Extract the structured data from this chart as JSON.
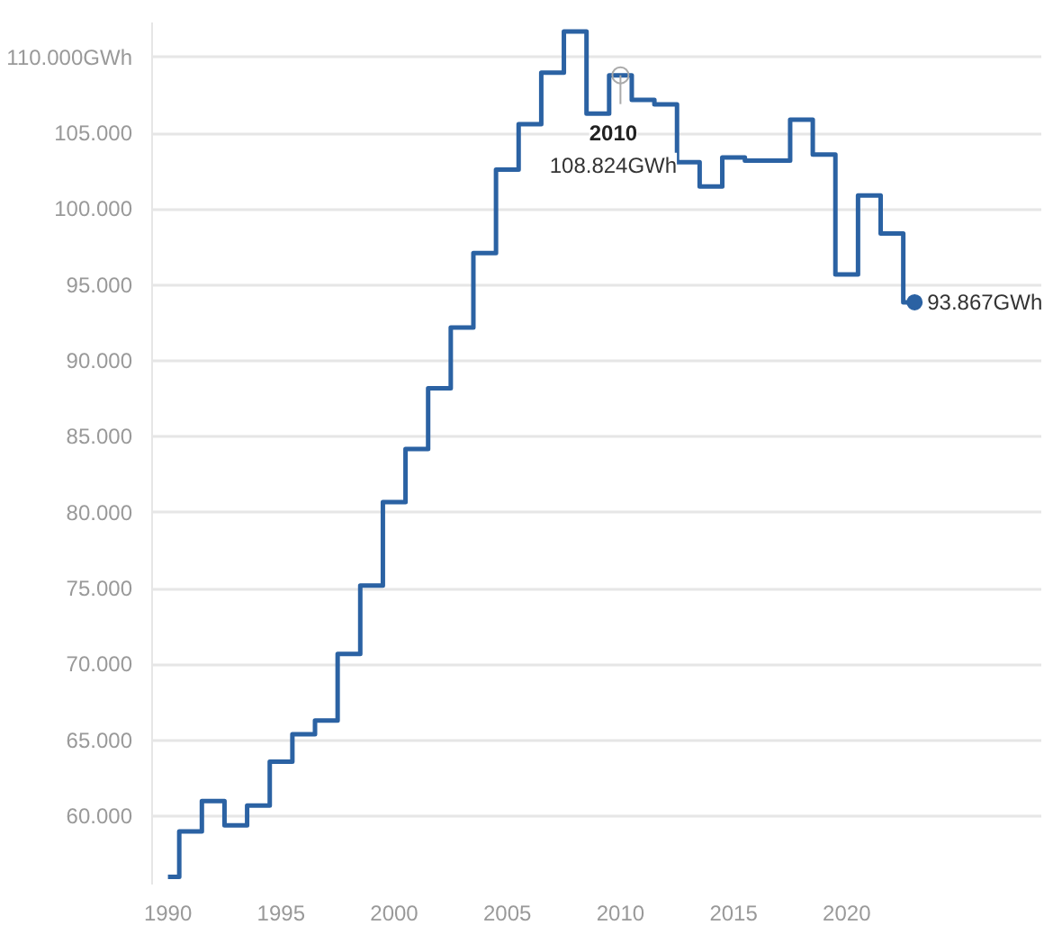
{
  "chart_data": {
    "type": "step",
    "x": [
      1990,
      1991,
      1992,
      1993,
      1994,
      1995,
      1996,
      1997,
      1998,
      1999,
      2000,
      2001,
      2002,
      2003,
      2004,
      2005,
      2006,
      2007,
      2008,
      2009,
      2010,
      2011,
      2012,
      2013,
      2014,
      2015,
      2016,
      2017,
      2018,
      2019,
      2020,
      2021,
      2022,
      2023
    ],
    "series": [
      {
        "color": "#2b62a3",
        "values": [
          56000,
          59000,
          61000,
          59400,
          60700,
          63600,
          65400,
          66300,
          70700,
          75200,
          80700,
          84200,
          88200,
          92200,
          97100,
          102600,
          105600,
          109000,
          111700,
          106300,
          108824,
          107200,
          106900,
          103100,
          101500,
          103400,
          103200,
          103200,
          105900,
          103600,
          95700,
          100900,
          98400,
          93867
        ]
      }
    ],
    "xlim": [
      1989.3,
      2028.6
    ],
    "ylim": [
      55500,
      112300
    ],
    "xticks": [
      1990,
      1995,
      2000,
      2005,
      2010,
      2015,
      2020
    ],
    "yticks": [
      {
        "value": 60000,
        "label": "60.000"
      },
      {
        "value": 65000,
        "label": "65.000"
      },
      {
        "value": 70000,
        "label": "70.000"
      },
      {
        "value": 75000,
        "label": "75.000"
      },
      {
        "value": 80000,
        "label": "80.000"
      },
      {
        "value": 85000,
        "label": "85.000"
      },
      {
        "value": 90000,
        "label": "90.000"
      },
      {
        "value": 95000,
        "label": "95.000"
      },
      {
        "value": 100000,
        "label": "100.000"
      },
      {
        "value": 105000,
        "label": "105.000"
      },
      {
        "value": 110000,
        "label": "110.000GWh"
      }
    ],
    "grid": "y",
    "marker": "none",
    "line_style": "solid",
    "annotations": [
      {
        "text": "2010\n108.824GWh",
        "x": 2010,
        "y": 108824
      },
      {
        "text": "93.867GWh",
        "x": 2023,
        "y": 93867
      }
    ]
  }
}
